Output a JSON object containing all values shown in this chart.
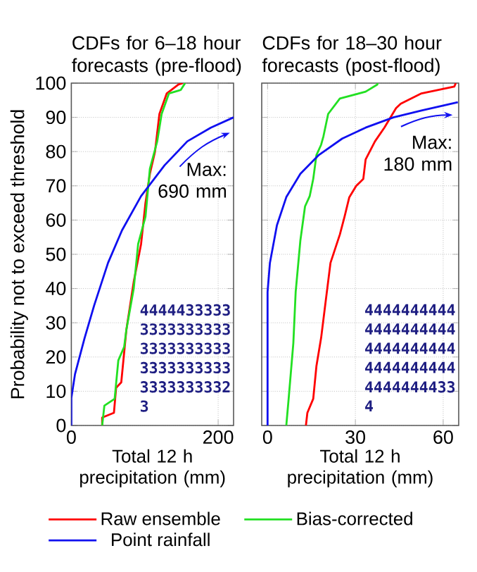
{
  "chart_data": [
    {
      "type": "line",
      "title": "CDFs for 6–18 hour forecasts (pre-flood)",
      "xlabel": "Total 12 h precipitation (mm)",
      "ylabel": "Probability not to exceed threshold",
      "xlim": [
        0,
        221
      ],
      "xticks": [
        0,
        200
      ],
      "ylim": [
        0,
        100
      ],
      "yticks": [
        0,
        10,
        20,
        30,
        40,
        50,
        60,
        70,
        80,
        90,
        100
      ],
      "grid": true,
      "legend": "bottom",
      "line_style": "solid",
      "marker": "none",
      "series": [
        {
          "name": "Raw ensemble",
          "color": "#ff0000",
          "x": [
            42,
            42,
            58,
            61,
            68,
            75,
            85,
            95,
            101,
            107,
            114,
            120,
            130,
            146,
            152
          ],
          "values": [
            0,
            2.3,
            3.7,
            11,
            12.6,
            28,
            42,
            53,
            65,
            73.5,
            80,
            91,
            97,
            99.6,
            100
          ]
        },
        {
          "name": "Bias-corrected",
          "color": "#22e022",
          "x": [
            42,
            45,
            59,
            64,
            72,
            75,
            85,
            91,
            101,
            107,
            117,
            123,
            133,
            149,
            155
          ],
          "values": [
            0,
            5.8,
            7.8,
            19,
            23,
            28,
            40,
            53,
            61,
            75,
            83,
            91,
            97,
            98,
            100
          ]
        },
        {
          "name": "Point rainfall",
          "color": "#1010f0",
          "x": [
            0,
            0,
            5,
            18,
            31,
            50,
            69,
            95,
            127,
            158,
            190,
            221
          ],
          "values": [
            0,
            8,
            15,
            25.5,
            35,
            47.5,
            57,
            67,
            76,
            83,
            87,
            90
          ]
        }
      ],
      "annotations": [
        "Max: 690 mm",
        "4444433333",
        "3333333333",
        "3333333333",
        "3333333333",
        "3333333332",
        "3"
      ]
    },
    {
      "type": "line",
      "title": "CDFs for 18–30 hour forecasts (post-flood)",
      "xlabel": "Total 12 h precipitation (mm)",
      "xlim": [
        -2,
        65.3
      ],
      "xticks": [
        0,
        30,
        60
      ],
      "ylim": [
        0,
        100
      ],
      "yticks": [
        0,
        10,
        20,
        30,
        40,
        50,
        60,
        70,
        80,
        90,
        100
      ],
      "grid": true,
      "tick_labels": "x",
      "line_style": "solid",
      "marker": "none",
      "series": [
        {
          "color": "#ff0000",
          "x": [
            13.1,
            13.6,
            15.6,
            16.7,
            18.3,
            19.9,
            21.5,
            24.7,
            26.3,
            27.9,
            30.3,
            32.7,
            33.5,
            36.7,
            39.9,
            43.9,
            45.5,
            52.6,
            63.8,
            64.3
          ],
          "values": [
            0,
            3.7,
            7.8,
            17.4,
            25.6,
            36.6,
            47.5,
            55.8,
            61,
            66.6,
            70,
            72,
            77.7,
            83,
            87,
            92.7,
            94,
            97,
            99,
            100
          ]
        },
        {
          "color": "#22e022",
          "x": [
            6.4,
            7.2,
            8.8,
            9.6,
            11.2,
            12.8,
            14.4,
            15.6,
            16.7,
            18.3,
            19.1,
            20.7,
            24.7,
            33.5,
            37.5,
            37.6
          ],
          "values": [
            0,
            7.8,
            24,
            39,
            54,
            64,
            67,
            72,
            79,
            82,
            84.5,
            91,
            95.5,
            97.5,
            99.6,
            100
          ]
        },
        {
          "color": "#1010f0",
          "x": [
            0,
            0,
            0.8,
            3.2,
            6.4,
            11.2,
            17.5,
            25.5,
            33.5,
            43,
            52.6,
            65
          ],
          "values": [
            0,
            39,
            47.5,
            58.5,
            66.7,
            73.5,
            79,
            83.8,
            87,
            90,
            92,
            94.4
          ]
        }
      ],
      "annotations": [
        "Max: 180 mm",
        "4444444444",
        "4444444444",
        "4444444444",
        "4444444444",
        "4444444433",
        "4"
      ]
    }
  ]
}
